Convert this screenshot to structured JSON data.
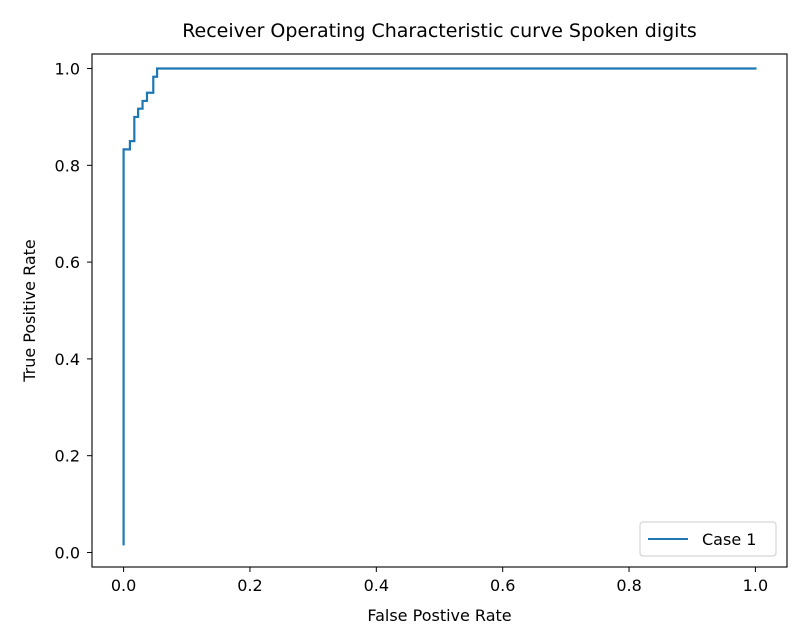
{
  "chart_data": {
    "type": "line",
    "title": "Receiver Operating Characteristic curve Spoken digits",
    "xlabel": "False Postive Rate",
    "ylabel": "True Positive Rate",
    "xlim": [
      -0.05,
      1.05
    ],
    "ylim": [
      -0.03,
      1.03
    ],
    "xticks": [
      0.0,
      0.2,
      0.4,
      0.6,
      0.8,
      1.0
    ],
    "xtick_labels": [
      "0.0",
      "0.2",
      "0.4",
      "0.6",
      "0.8",
      "1.0"
    ],
    "yticks": [
      0.0,
      0.2,
      0.4,
      0.6,
      0.8,
      1.0
    ],
    "ytick_labels": [
      "0.0",
      "0.2",
      "0.4",
      "0.6",
      "0.8",
      "1.0"
    ],
    "grid": false,
    "legend_position": "lower-right",
    "series": [
      {
        "name": "Case 1",
        "color": "#1f77b4",
        "x": [
          0.0,
          0.0,
          0.0,
          0.01,
          0.01,
          0.017,
          0.017,
          0.023,
          0.023,
          0.03,
          0.03,
          0.037,
          0.037,
          0.047,
          0.047,
          0.053,
          0.053,
          1.0
        ],
        "y": [
          0.017,
          0.833,
          0.833,
          0.833,
          0.85,
          0.85,
          0.9,
          0.9,
          0.917,
          0.917,
          0.933,
          0.933,
          0.95,
          0.95,
          0.983,
          0.983,
          1.0,
          1.0
        ]
      }
    ]
  }
}
